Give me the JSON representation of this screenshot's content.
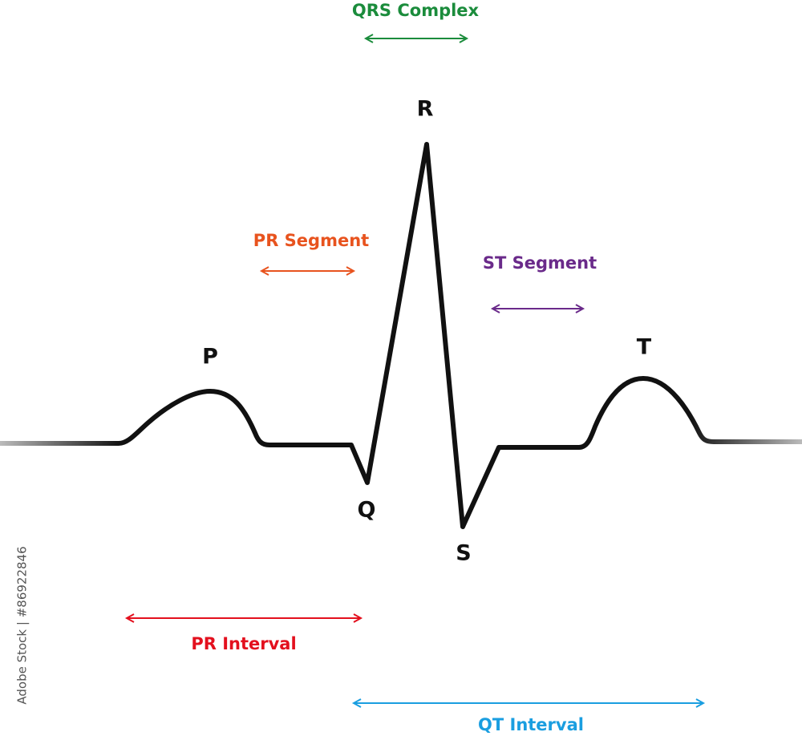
{
  "waves": [
    {
      "label": "P"
    },
    {
      "label": "Q"
    },
    {
      "label": "R"
    },
    {
      "label": "S"
    },
    {
      "label": "T"
    }
  ],
  "intervals": [
    {
      "label": "QRS Complex",
      "color": "#1b8c3c"
    },
    {
      "label": "PR Segment",
      "color": "#e8531e"
    },
    {
      "label": "ST Segment",
      "color": "#6a2a8a"
    },
    {
      "label": "PR Interval",
      "color": "#e3101e"
    },
    {
      "label": "QT Interval",
      "color": "#1a9ee0"
    }
  ],
  "watermark": "Adobe Stock | #86922846"
}
